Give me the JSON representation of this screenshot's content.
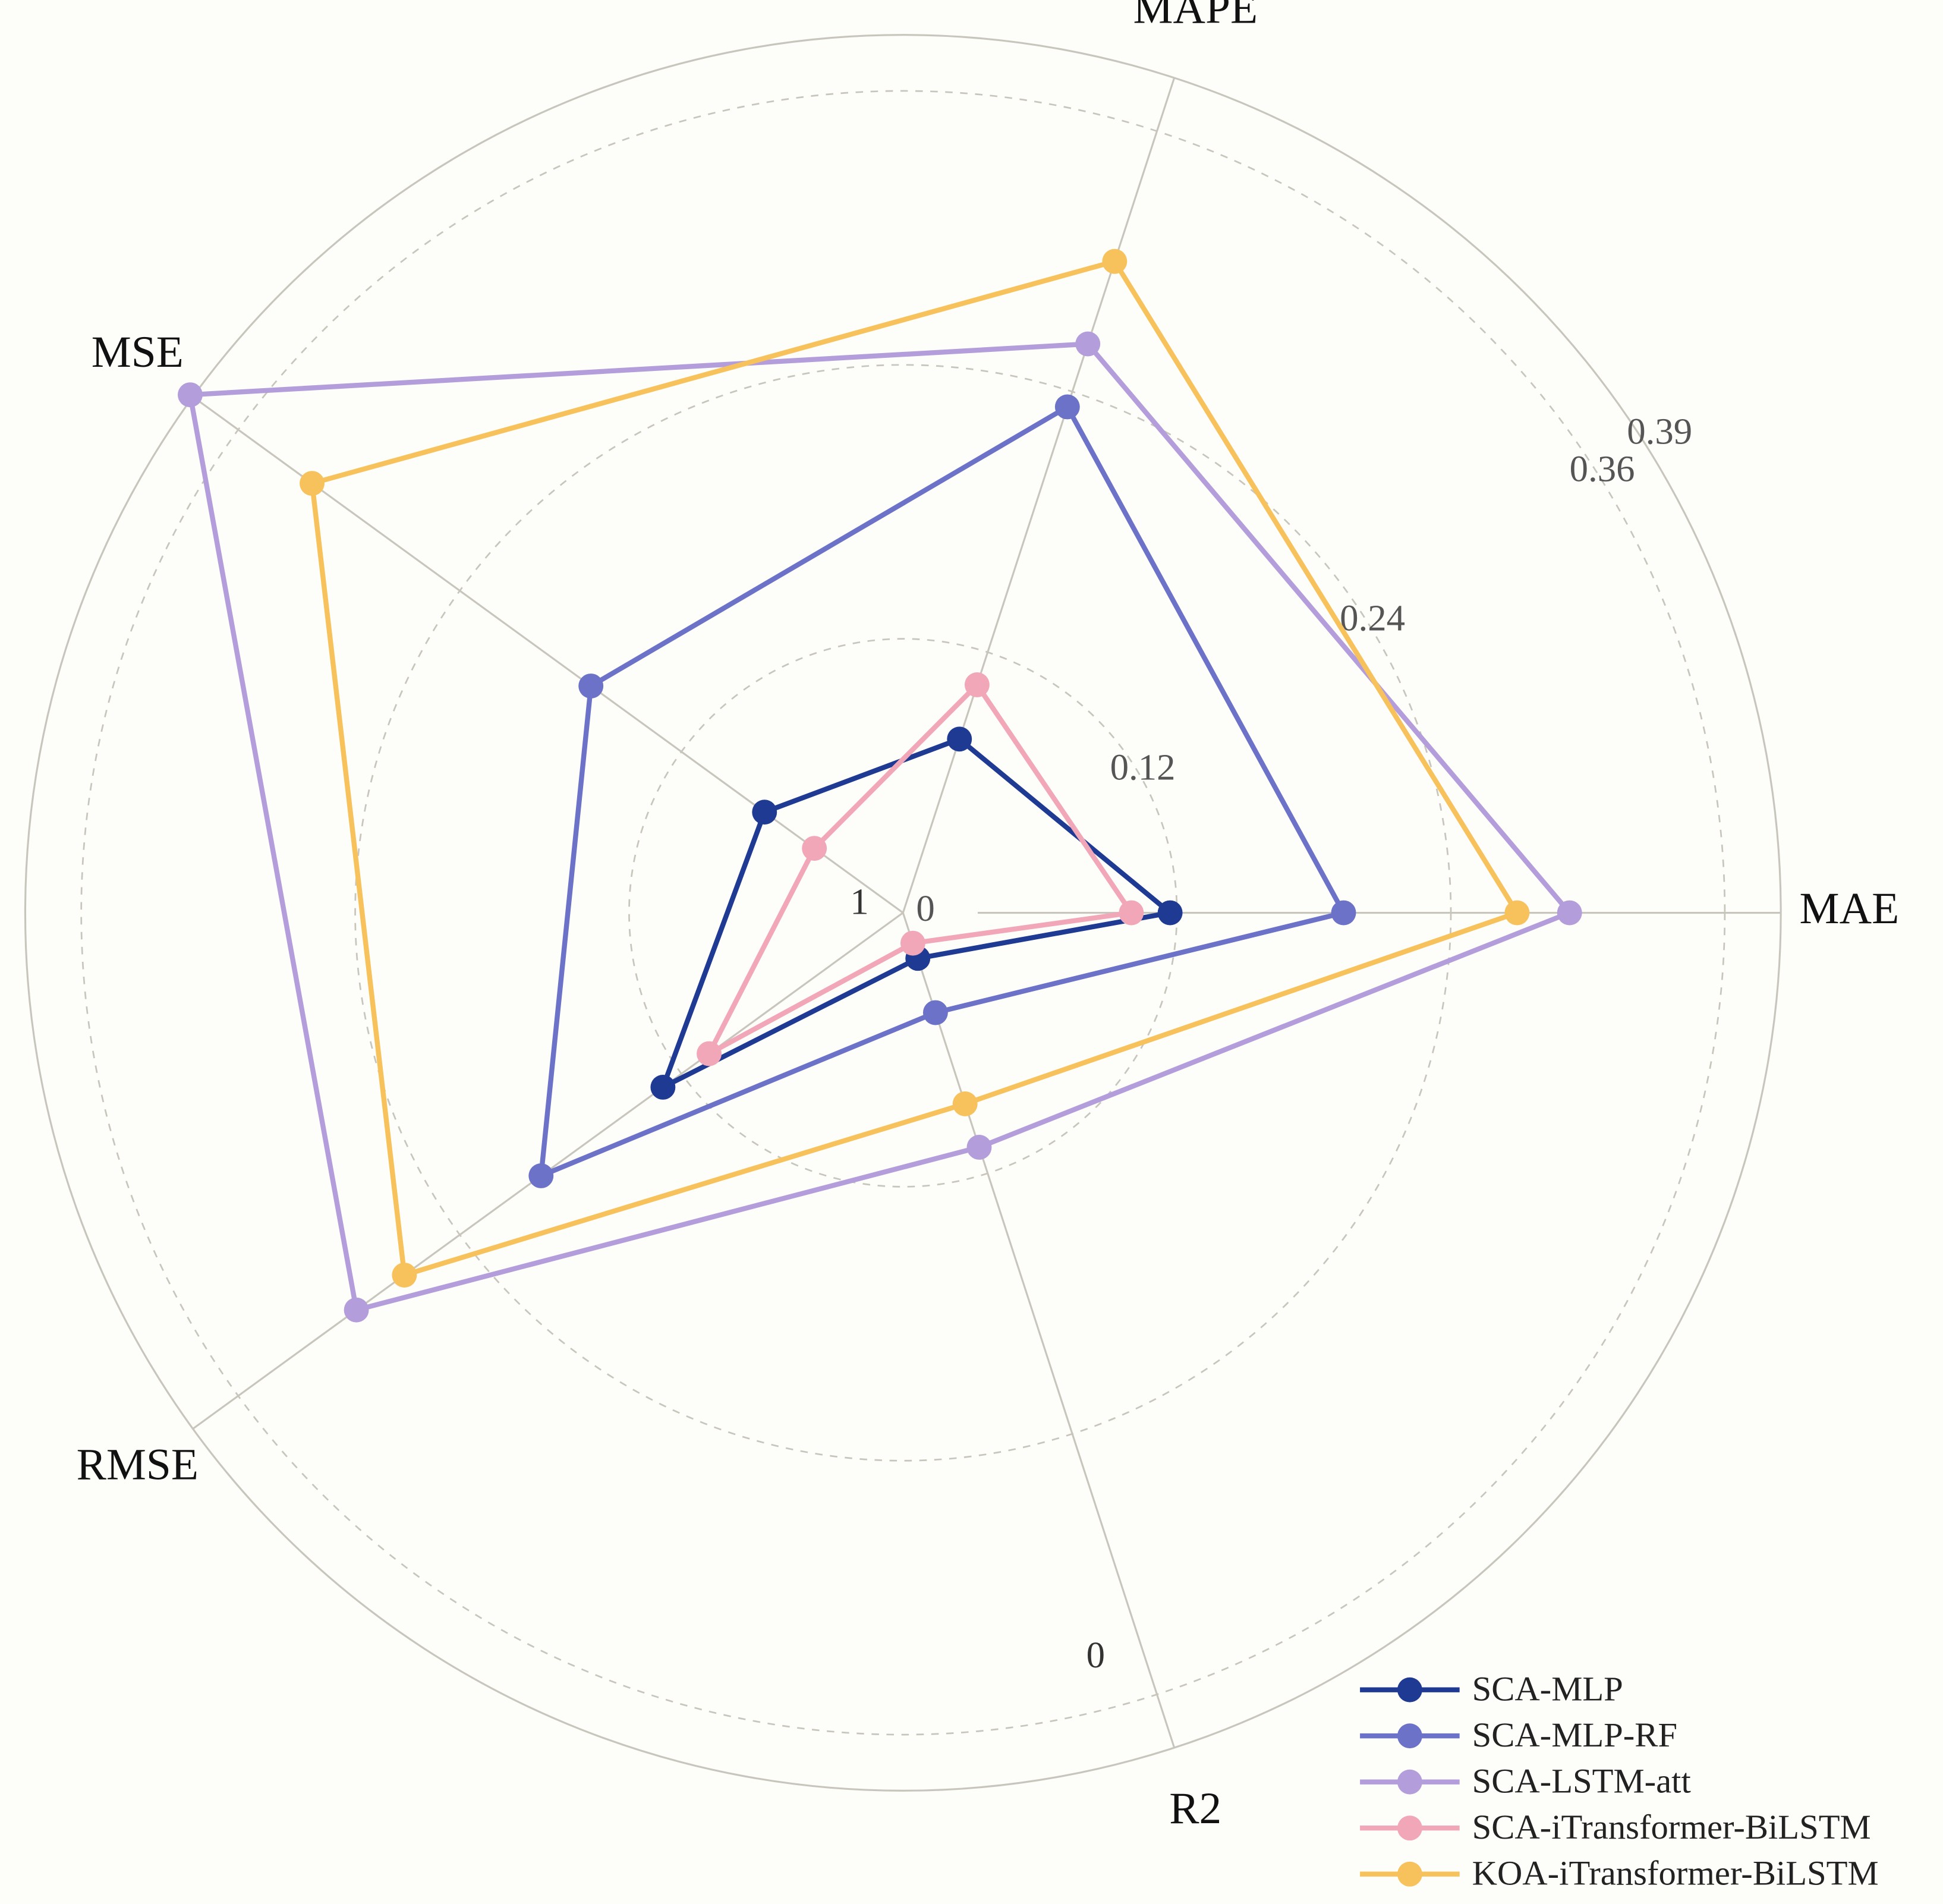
{
  "chart_data": {
    "type": "radar",
    "categories": [
      "MAE",
      "MAPE",
      "MSE",
      "RMSE",
      "R2"
    ],
    "ylim": [
      0,
      0.39
    ],
    "yticks": [
      0,
      0.12,
      0.24,
      0.36,
      0.39
    ],
    "r2_axis_labels": [
      "1",
      "0"
    ],
    "series": [
      {
        "name": "SCA-MLP",
        "color": "#1f3a93",
        "values": [
          0.117,
          0.08,
          0.075,
          0.13,
          0.021
        ]
      },
      {
        "name": "SCA-MLP-RF",
        "color": "#6b72c8",
        "values": [
          0.193,
          0.233,
          0.169,
          0.196,
          0.046
        ]
      },
      {
        "name": "SCA-LSTM-att",
        "color": "#b39ddb",
        "values": [
          0.292,
          0.262,
          0.386,
          0.296,
          0.108
        ]
      },
      {
        "name": "SCA-iTransformer-BiLSTM",
        "color": "#f2a7b8",
        "values": [
          0.1,
          0.105,
          0.048,
          0.105,
          0.014
        ]
      },
      {
        "name": "KOA-iTransformer-BiLSTM",
        "color": "#f7c25c",
        "values": [
          0.269,
          0.3,
          0.32,
          0.27,
          0.088
        ]
      }
    ]
  }
}
